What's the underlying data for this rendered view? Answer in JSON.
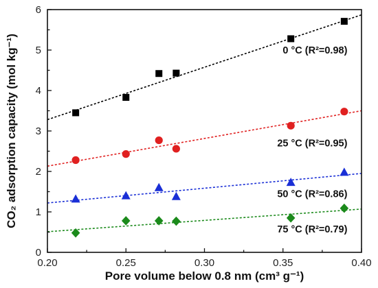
{
  "chart_data": {
    "type": "scatter",
    "xlabel": "Pore volume below 0.8 nm (cm³ g⁻¹)",
    "ylabel": "CO₂ adsorption capacity (mol kg⁻¹)",
    "xlim": [
      0.2,
      0.4
    ],
    "ylim": [
      0,
      6
    ],
    "xticks": [
      "0.20",
      "0.25",
      "0.30",
      "0.35",
      "0.40"
    ],
    "yticks": [
      "0",
      "1",
      "2",
      "3",
      "4",
      "5",
      "6"
    ],
    "grid": false,
    "series": [
      {
        "name": "0 °C (R²=0.98)",
        "marker": "square",
        "color": "#000000",
        "x": [
          0.218,
          0.25,
          0.271,
          0.282,
          0.355,
          0.389
        ],
        "y": [
          3.45,
          3.83,
          4.42,
          4.43,
          5.28,
          5.71
        ],
        "fit": {
          "x": [
            0.2,
            0.4
          ],
          "y": [
            3.28,
            5.87
          ]
        }
      },
      {
        "name": "25 °C (R²=0.95)",
        "marker": "circle",
        "color": "#e02020",
        "x": [
          0.218,
          0.25,
          0.271,
          0.282,
          0.355,
          0.389
        ],
        "y": [
          2.28,
          2.43,
          2.77,
          2.56,
          3.13,
          3.48
        ],
        "fit": {
          "x": [
            0.2,
            0.4
          ],
          "y": [
            2.13,
            3.5
          ]
        }
      },
      {
        "name": "50 °C (R²=0.86)",
        "marker": "triangle",
        "color": "#1a2fd6",
        "x": [
          0.218,
          0.25,
          0.271,
          0.282,
          0.355,
          0.389
        ],
        "y": [
          1.32,
          1.4,
          1.6,
          1.38,
          1.73,
          1.98
        ],
        "fit": {
          "x": [
            0.2,
            0.4
          ],
          "y": [
            1.22,
            1.95
          ]
        }
      },
      {
        "name": "75 °C (R²=0.79)",
        "marker": "diamond",
        "color": "#1b8a1b",
        "x": [
          0.218,
          0.25,
          0.271,
          0.282,
          0.355,
          0.389
        ],
        "y": [
          0.48,
          0.78,
          0.78,
          0.77,
          0.85,
          1.09
        ],
        "fit": {
          "x": [
            0.2,
            0.4
          ],
          "y": [
            0.51,
            1.07
          ]
        }
      }
    ]
  }
}
